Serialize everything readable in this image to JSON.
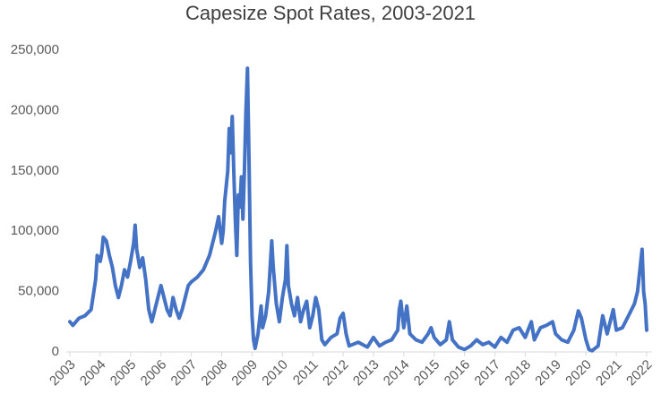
{
  "chart_data": {
    "type": "line",
    "title": "Capesize Spot Rates, 2003-2021",
    "series": [
      {
        "color": "#4472c4",
        "x": [
          2003.0,
          2003.1,
          2003.3,
          2003.5,
          2003.7,
          2003.85,
          2003.9,
          2004.0,
          2004.05,
          2004.1,
          2004.2,
          2004.3,
          2004.4,
          2004.5,
          2004.6,
          2004.7,
          2004.8,
          2004.9,
          2005.0,
          2005.1,
          2005.15,
          2005.2,
          2005.3,
          2005.4,
          2005.5,
          2005.6,
          2005.7,
          2005.8,
          2005.9,
          2006.0,
          2006.1,
          2006.2,
          2006.3,
          2006.4,
          2006.5,
          2006.6,
          2006.7,
          2006.8,
          2006.9,
          2007.0,
          2007.2,
          2007.4,
          2007.6,
          2007.8,
          2007.9,
          2008.0,
          2008.05,
          2008.1,
          2008.2,
          2008.25,
          2008.3,
          2008.35,
          2008.4,
          2008.45,
          2008.5,
          2008.55,
          2008.6,
          2008.65,
          2008.7,
          2008.75,
          2008.8,
          2008.85,
          2008.9,
          2008.95,
          2009.0,
          2009.05,
          2009.1,
          2009.2,
          2009.3,
          2009.35,
          2009.45,
          2009.55,
          2009.65,
          2009.7,
          2009.8,
          2009.9,
          2010.0,
          2010.1,
          2010.15,
          2010.2,
          2010.3,
          2010.4,
          2010.5,
          2010.6,
          2010.7,
          2010.8,
          2010.9,
          2011.0,
          2011.1,
          2011.2,
          2011.3,
          2011.4,
          2011.6,
          2011.8,
          2011.9,
          2012.0,
          2012.1,
          2012.2,
          2012.5,
          2012.8,
          2013.0,
          2013.2,
          2013.4,
          2013.6,
          2013.8,
          2013.85,
          2013.9,
          2014.0,
          2014.1,
          2014.2,
          2014.4,
          2014.6,
          2014.8,
          2014.9,
          2015.0,
          2015.2,
          2015.4,
          2015.5,
          2015.6,
          2015.8,
          2016.0,
          2016.2,
          2016.4,
          2016.6,
          2016.8,
          2017.0,
          2017.2,
          2017.4,
          2017.6,
          2017.8,
          2018.0,
          2018.2,
          2018.3,
          2018.5,
          2018.7,
          2018.9,
          2019.0,
          2019.2,
          2019.4,
          2019.6,
          2019.75,
          2019.85,
          2020.0,
          2020.1,
          2020.2,
          2020.4,
          2020.55,
          2020.7,
          2020.9,
          2021.0,
          2021.2,
          2021.4,
          2021.6,
          2021.7,
          2021.85,
          2021.9,
          2021.95,
          2022.0
        ],
        "values": [
          25000,
          22000,
          28000,
          30000,
          35000,
          60000,
          80000,
          75000,
          82000,
          95000,
          92000,
          80000,
          70000,
          55000,
          45000,
          55000,
          68000,
          62000,
          75000,
          90000,
          105000,
          85000,
          70000,
          78000,
          60000,
          35000,
          25000,
          35000,
          45000,
          55000,
          45000,
          35000,
          30000,
          45000,
          35000,
          28000,
          35000,
          45000,
          55000,
          58000,
          62000,
          68000,
          80000,
          100000,
          112000,
          90000,
          100000,
          125000,
          150000,
          185000,
          165000,
          195000,
          150000,
          110000,
          80000,
          130000,
          120000,
          145000,
          110000,
          150000,
          200000,
          235000,
          160000,
          75000,
          30000,
          10000,
          3000,
          15000,
          38000,
          20000,
          30000,
          50000,
          92000,
          70000,
          40000,
          25000,
          45000,
          60000,
          88000,
          55000,
          40000,
          30000,
          45000,
          25000,
          35000,
          42000,
          20000,
          30000,
          45000,
          35000,
          10000,
          6000,
          12000,
          15000,
          28000,
          32000,
          15000,
          5000,
          8000,
          4000,
          12000,
          5000,
          8000,
          10000,
          18000,
          35000,
          42000,
          20000,
          38000,
          15000,
          10000,
          8000,
          15000,
          20000,
          12000,
          6000,
          10000,
          25000,
          10000,
          4000,
          2000,
          5000,
          10000,
          6000,
          8000,
          4000,
          12000,
          8000,
          18000,
          20000,
          12000,
          25000,
          10000,
          20000,
          22000,
          25000,
          15000,
          10000,
          8000,
          18000,
          34000,
          28000,
          10000,
          2000,
          1000,
          5000,
          30000,
          15000,
          35000,
          18000,
          20000,
          30000,
          40000,
          50000,
          85000,
          50000,
          40000,
          18000
        ]
      }
    ],
    "xlim": [
      2003,
      2022
    ],
    "xticks": [
      2003,
      2004,
      2005,
      2006,
      2007,
      2008,
      2009,
      2010,
      2011,
      2012,
      2013,
      2014,
      2015,
      2016,
      2017,
      2018,
      2019,
      2020,
      2021,
      2022
    ],
    "ylim": [
      0,
      250000
    ],
    "yticks": [
      0,
      {
        "value": 50000,
        "label": "50,000"
      },
      {
        "value": 100000,
        "label": "100,000"
      },
      {
        "value": 150000,
        "label": "150,000"
      },
      {
        "value": 200000,
        "label": "200,000"
      },
      {
        "value": 250000,
        "label": "250,000"
      }
    ]
  }
}
